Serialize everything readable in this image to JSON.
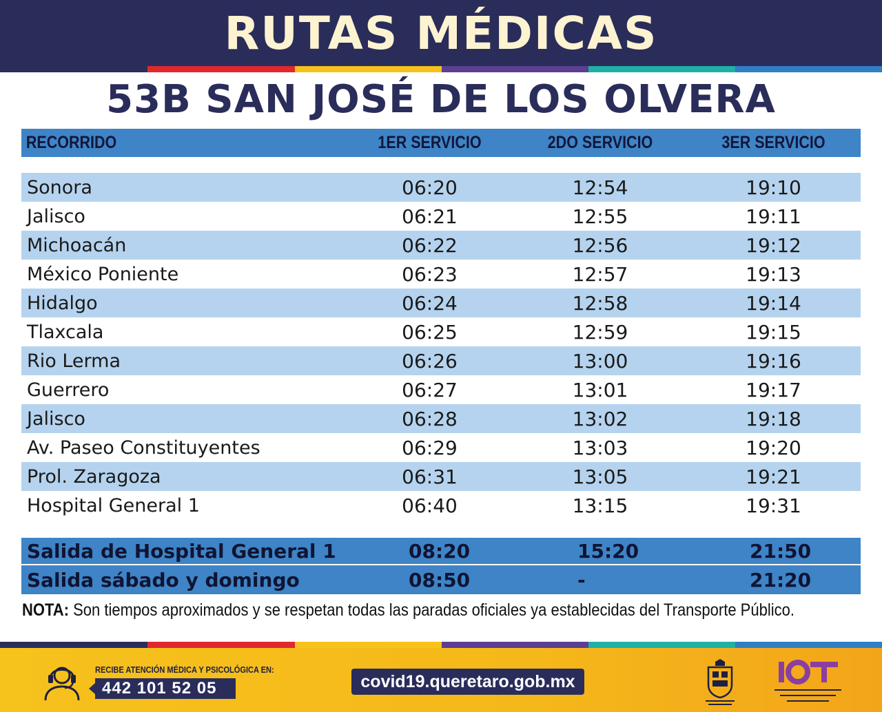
{
  "header": {
    "title": "RUTAS MÉDICAS"
  },
  "route": {
    "title": "53B SAN JOSÉ DE LOS OLVERA"
  },
  "colors": {
    "navy": "#2a2d5a",
    "table_blue": "#3e84c6",
    "row_light_blue": "#b5d3ee",
    "stripe": [
      "#2a2d5a",
      "#e0282e",
      "#f7c21b",
      "#5c3f93",
      "#1fb0a6",
      "#2f7fc4"
    ]
  },
  "table": {
    "headers": {
      "name": "RECORRIDO",
      "t1": "1ER SERVICIO",
      "t2": "2DO SERVICIO",
      "t3": "3ER SERVICIO"
    },
    "rows": [
      {
        "name": "Sonora",
        "t1": "06:20",
        "t2": "12:54",
        "t3": "19:10"
      },
      {
        "name": "Jalisco",
        "t1": "06:21",
        "t2": "12:55",
        "t3": "19:11"
      },
      {
        "name": "Michoacán",
        "t1": "06:22",
        "t2": "12:56",
        "t3": "19:12"
      },
      {
        "name": "México Poniente",
        "t1": "06:23",
        "t2": "12:57",
        "t3": "19:13"
      },
      {
        "name": "Hidalgo",
        "t1": "06:24",
        "t2": "12:58",
        "t3": "19:14"
      },
      {
        "name": "Tlaxcala",
        "t1": "06:25",
        "t2": "12:59",
        "t3": "19:15"
      },
      {
        "name": "Rio Lerma",
        "t1": "06:26",
        "t2": "13:00",
        "t3": "19:16"
      },
      {
        "name": "Guerrero",
        "t1": "06:27",
        "t2": "13:01",
        "t3": "19:17"
      },
      {
        "name": "Jalisco",
        "t1": "06:28",
        "t2": "13:02",
        "t3": "19:18"
      },
      {
        "name": "Av. Paseo Constituyentes",
        "t1": "06:29",
        "t2": "13:03",
        "t3": "19:20"
      },
      {
        "name": "Prol. Zaragoza",
        "t1": "06:31",
        "t2": "13:05",
        "t3": "19:21"
      },
      {
        "name": "Hospital General 1",
        "t1": "06:40",
        "t2": "13:15",
        "t3": "19:31"
      }
    ],
    "exits": [
      {
        "name": "Salida de Hospital General 1",
        "t1": "08:20",
        "t2": "15:20",
        "t3": "21:50"
      },
      {
        "name": "Salida sábado y domingo",
        "t1": "08:50",
        "t2": "-",
        "t3": "21:20"
      }
    ]
  },
  "note": {
    "label": "NOTA:",
    "text": " Son tiempos aproximados y se respetan todas las paradas oficiales ya establecidas del Transporte Público."
  },
  "footer": {
    "attention_label": "RECIBE ATENCIÓN MÉDICA Y PSICOLÓGICA EN:",
    "phone": "442 101 52 05",
    "url": "covid19.queretaro.gob.mx",
    "icons": [
      "headset-icon",
      "queretaro-seal-logo",
      "iqt-logo"
    ]
  }
}
